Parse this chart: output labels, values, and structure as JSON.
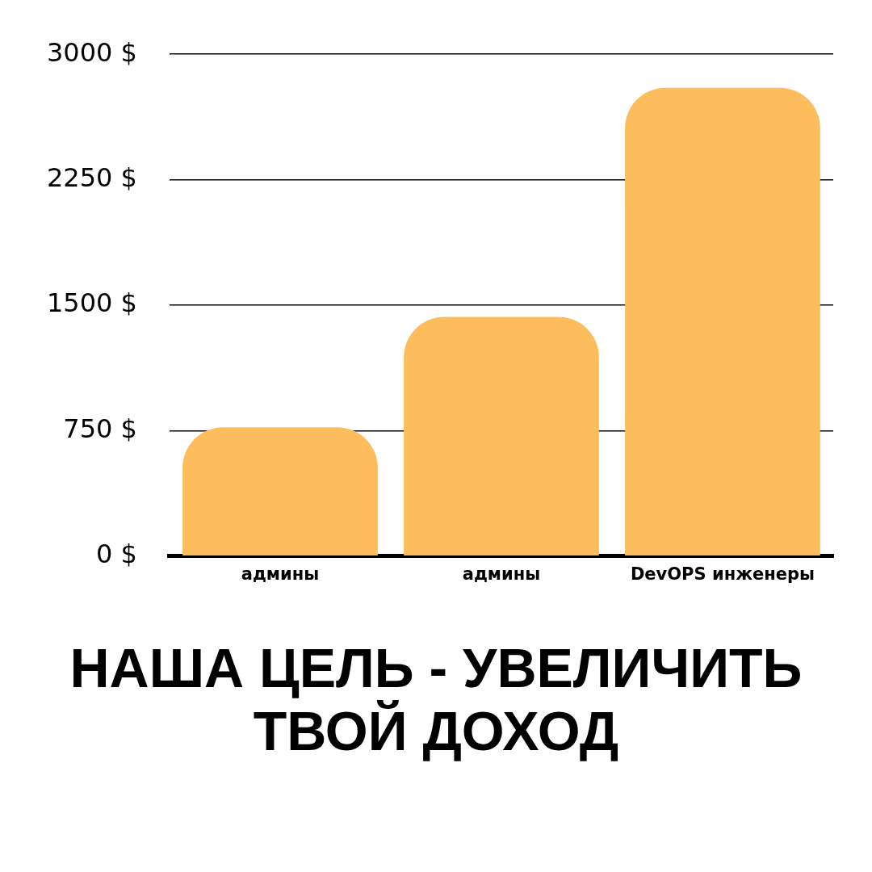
{
  "chart_data": {
    "type": "bar",
    "title": "НАША ЦЕЛЬ - УВЕЛИЧИТЬ ТВОЙ ДОХОД",
    "categories": [
      "админы",
      "админы",
      "DevOPS инженеры"
    ],
    "values": [
      770,
      1430,
      2800
    ],
    "color": "#fdbd5c",
    "ylim": [
      0,
      3000
    ],
    "yticks": [
      {
        "value": 0,
        "label": "0 $"
      },
      {
        "value": 750,
        "label": "750 $"
      },
      {
        "value": 1500,
        "label": "1500 $"
      },
      {
        "value": 2250,
        "label": "2250 $"
      },
      {
        "value": 3000,
        "label": "3000 $"
      }
    ],
    "grid": "y"
  }
}
